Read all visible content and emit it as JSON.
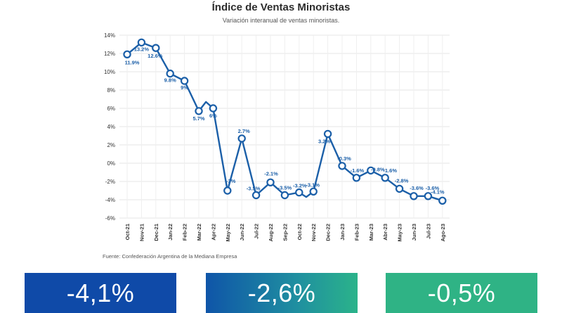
{
  "chart_data": {
    "type": "line",
    "title": "Índice de Ventas Minoristas",
    "subtitle": "Variación interanual de ventas minoristas.",
    "source": "Fuente: Confederación Argentina de la Mediana Empresa",
    "ylim": [
      -6,
      14
    ],
    "yticks": [
      "14%",
      "12%",
      "10%",
      "8%",
      "6%",
      "4%",
      "2%",
      "0%",
      "-2%",
      "-4%",
      "-6%"
    ],
    "ytick_values": [
      14,
      12,
      10,
      8,
      6,
      4,
      2,
      0,
      -2,
      -4,
      -6
    ],
    "grid": true,
    "line_color": "#1b5fa8",
    "x": [
      "Oct-21",
      "Nov-21",
      "Dec-21",
      "Jan-22",
      "Feb-22",
      "Mar-22",
      "Apr-22",
      "May-22",
      "Jun-22",
      "Jul-22",
      "Aug-22",
      "Sep-22",
      "Oct-22",
      "Nov-22",
      "Dec-22",
      "Jan-23",
      "Feb-23",
      "Mar-23",
      "Abr-23",
      "May-23",
      "Jun-23",
      "Jul-23",
      "Ago-23"
    ],
    "points": [
      {
        "xi": 0,
        "y": 11.9,
        "label": "11.9%",
        "marker": true
      },
      {
        "xi": 1,
        "y": 13.2,
        "label": "13.2%",
        "marker": true
      },
      {
        "xi": 2,
        "y": 12.6,
        "label": "12.6%",
        "marker": true
      },
      {
        "xi": 3,
        "y": 9.8,
        "label": "9.8%",
        "marker": true
      },
      {
        "xi": 4,
        "y": 9,
        "label": "9%",
        "marker": true
      },
      {
        "xi": 5,
        "y": 5.7,
        "label": "5.7%",
        "marker": true
      },
      {
        "xi": 5.5,
        "y": 6.7,
        "label": "",
        "marker": false
      },
      {
        "xi": 6,
        "y": 6,
        "label": "6%",
        "marker": true
      },
      {
        "xi": 7,
        "y": -3,
        "label": "-3%",
        "marker": true
      },
      {
        "xi": 8,
        "y": 2.7,
        "label": "2.7%",
        "marker": true
      },
      {
        "xi": 9,
        "y": -3.5,
        "label": "-3.5%",
        "marker": true
      },
      {
        "xi": 10,
        "y": -2.1,
        "label": "-2.1%",
        "marker": true
      },
      {
        "xi": 11,
        "y": -3.5,
        "label": "-3.5%",
        "marker": true
      },
      {
        "xi": 12,
        "y": -3.2,
        "label": "-3.2%",
        "marker": true
      },
      {
        "xi": 12.5,
        "y": -3.7,
        "label": "",
        "marker": false
      },
      {
        "xi": 13,
        "y": -3.1,
        "label": "-3.1%",
        "marker": true
      },
      {
        "xi": 14,
        "y": 3.2,
        "label": "3.2%",
        "marker": true
      },
      {
        "xi": 15,
        "y": -0.3,
        "label": "-0.3%",
        "marker": true
      },
      {
        "xi": 16,
        "y": -1.6,
        "label": "-1.6%",
        "marker": true
      },
      {
        "xi": 17,
        "y": -0.8,
        "label": "-0.8%",
        "marker": true
      },
      {
        "xi": 18,
        "y": -1.6,
        "label": "-1.6%",
        "marker": true
      },
      {
        "xi": 19,
        "y": -2.8,
        "label": "-2.8%",
        "marker": true
      },
      {
        "xi": 20,
        "y": -3.6,
        "label": "-3.6%",
        "marker": true
      },
      {
        "xi": 21,
        "y": -3.6,
        "label": "-3.6%",
        "marker": true
      },
      {
        "xi": 22,
        "y": -4.1,
        "label": "-4.1%",
        "marker": true
      }
    ]
  },
  "cards": [
    {
      "value": "-4,1%",
      "color": "#0f4aa8"
    },
    {
      "value": "-2,6%",
      "color": "#1f8fa0"
    },
    {
      "value": "-0,5%",
      "color": "#2fb385"
    }
  ]
}
